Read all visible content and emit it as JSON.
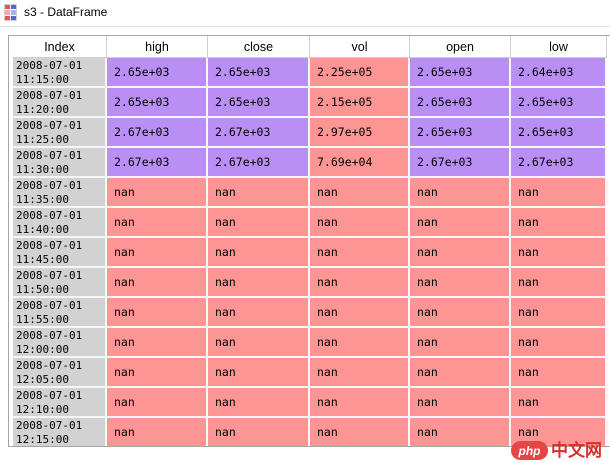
{
  "window": {
    "title": "s3 - DataFrame"
  },
  "icon": {
    "name": "dataframe-grid-icon",
    "cells": [
      "#d95c5c",
      "#5b67cc",
      "#efabab",
      "#a9b2e4",
      "#d95c5c",
      "#5b67cc"
    ]
  },
  "colors": {
    "value_purple": "#ba8ff5",
    "value_pink": "#fd9595",
    "index_gray": "#d2d2d2"
  },
  "table": {
    "columns": [
      "Index",
      "high",
      "close",
      "vol",
      "open",
      "low"
    ],
    "value_columns": [
      "high",
      "close",
      "vol",
      "open",
      "low"
    ],
    "rows": [
      {
        "date": "2008-07-01",
        "time": "11:15:00",
        "high": "2.65e+03",
        "close": "2.65e+03",
        "vol": "2.25e+05",
        "open": "2.65e+03",
        "low": "2.64e+03"
      },
      {
        "date": "2008-07-01",
        "time": "11:20:00",
        "high": "2.65e+03",
        "close": "2.65e+03",
        "vol": "2.15e+05",
        "open": "2.65e+03",
        "low": "2.65e+03"
      },
      {
        "date": "2008-07-01",
        "time": "11:25:00",
        "high": "2.67e+03",
        "close": "2.67e+03",
        "vol": "2.97e+05",
        "open": "2.65e+03",
        "low": "2.65e+03"
      },
      {
        "date": "2008-07-01",
        "time": "11:30:00",
        "high": "2.67e+03",
        "close": "2.67e+03",
        "vol": "7.69e+04",
        "open": "2.67e+03",
        "low": "2.67e+03"
      },
      {
        "date": "2008-07-01",
        "time": "11:35:00",
        "high": "nan",
        "close": "nan",
        "vol": "nan",
        "open": "nan",
        "low": "nan"
      },
      {
        "date": "2008-07-01",
        "time": "11:40:00",
        "high": "nan",
        "close": "nan",
        "vol": "nan",
        "open": "nan",
        "low": "nan"
      },
      {
        "date": "2008-07-01",
        "time": "11:45:00",
        "high": "nan",
        "close": "nan",
        "vol": "nan",
        "open": "nan",
        "low": "nan"
      },
      {
        "date": "2008-07-01",
        "time": "11:50:00",
        "high": "nan",
        "close": "nan",
        "vol": "nan",
        "open": "nan",
        "low": "nan"
      },
      {
        "date": "2008-07-01",
        "time": "11:55:00",
        "high": "nan",
        "close": "nan",
        "vol": "nan",
        "open": "nan",
        "low": "nan"
      },
      {
        "date": "2008-07-01",
        "time": "12:00:00",
        "high": "nan",
        "close": "nan",
        "vol": "nan",
        "open": "nan",
        "low": "nan"
      },
      {
        "date": "2008-07-01",
        "time": "12:05:00",
        "high": "nan",
        "close": "nan",
        "vol": "nan",
        "open": "nan",
        "low": "nan"
      },
      {
        "date": "2008-07-01",
        "time": "12:10:00",
        "high": "nan",
        "close": "nan",
        "vol": "nan",
        "open": "nan",
        "low": "nan"
      },
      {
        "date": "2008-07-01",
        "time": "12:15:00",
        "high": "nan",
        "close": "nan",
        "vol": "nan",
        "open": "nan",
        "low": "nan"
      }
    ]
  },
  "watermark": {
    "badge": "php",
    "text": "中文网"
  }
}
